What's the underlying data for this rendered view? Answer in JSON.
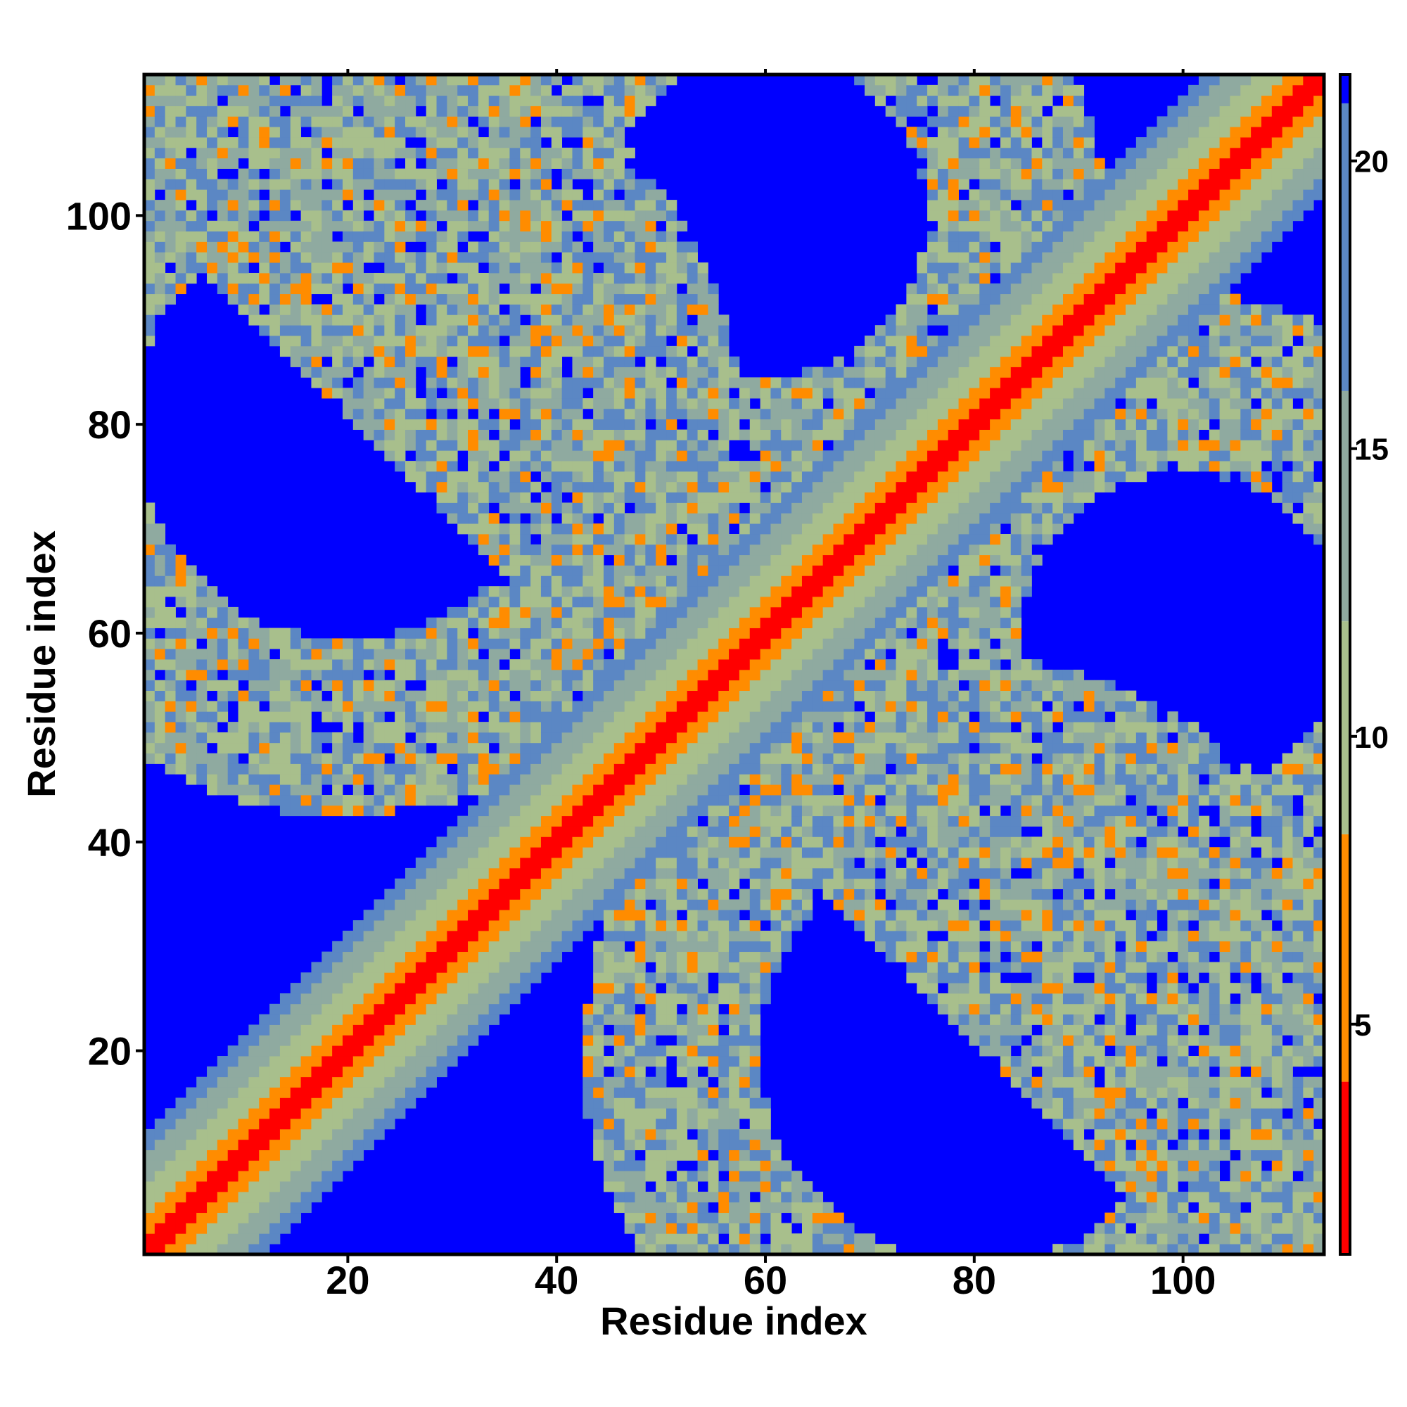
{
  "chart_data": {
    "type": "heatmap",
    "title": "",
    "xlabel": "Residue index",
    "ylabel": "Residue index",
    "xlim": [
      1,
      113
    ],
    "ylim": [
      1,
      113
    ],
    "n_residues": 113,
    "x_ticks": [
      20,
      40,
      60,
      80,
      100
    ],
    "y_ticks": [
      20,
      40,
      60,
      80,
      100
    ],
    "colorbar": {
      "range": [
        1,
        21.5
      ],
      "ticks": [
        5,
        10,
        15,
        20
      ],
      "bands": [
        {
          "from": 1,
          "to": 4,
          "color": "#ff0000"
        },
        {
          "from": 4,
          "to": 8.3,
          "color": "#ff8c00"
        },
        {
          "from": 8.3,
          "to": 12,
          "color": "#a8bf8c"
        },
        {
          "from": 12,
          "to": 16,
          "color": "#8faaa0"
        },
        {
          "from": 16,
          "to": 21,
          "color": "#5b87c4"
        },
        {
          "from": 21,
          "to": 21.5,
          "color": "#0000ff"
        }
      ]
    },
    "colors": {
      "far": "#0000ff",
      "contact": "#ff0000",
      "near": "#ff8c00",
      "band_inner": "#a8bf8c",
      "band_mid": "#8faaa0",
      "band_outer": "#5b87c4"
    },
    "structure": {
      "main_diagonal": {
        "from": [
          1,
          1
        ],
        "to": [
          113,
          113
        ]
      },
      "anti_diagonal_contacts": [
        {
          "x": [
            1,
            38
          ],
          "y": [
            113,
            76
          ],
          "note": ""
        },
        {
          "x": [
            38,
            76
          ],
          "y": [
            76,
            38
          ]
        },
        {
          "x": [
            76,
            113
          ],
          "y": [
            38,
            1
          ]
        }
      ],
      "loop_contacts": [
        {
          "center": [
            20,
            80
          ],
          "x_span": [
            1,
            45
          ],
          "y_span": [
            45,
            113
          ]
        },
        {
          "center": [
            60,
            100
          ],
          "x_span": [
            40,
            80
          ],
          "y_span": [
            76,
            113
          ]
        },
        {
          "center": [
            58,
            20
          ],
          "x_span": [
            38,
            80
          ],
          "y_span": [
            1,
            40
          ]
        },
        {
          "center": [
            98,
            60
          ],
          "x_span": [
            78,
            113
          ],
          "y_span": [
            30,
            80
          ]
        }
      ]
    }
  }
}
